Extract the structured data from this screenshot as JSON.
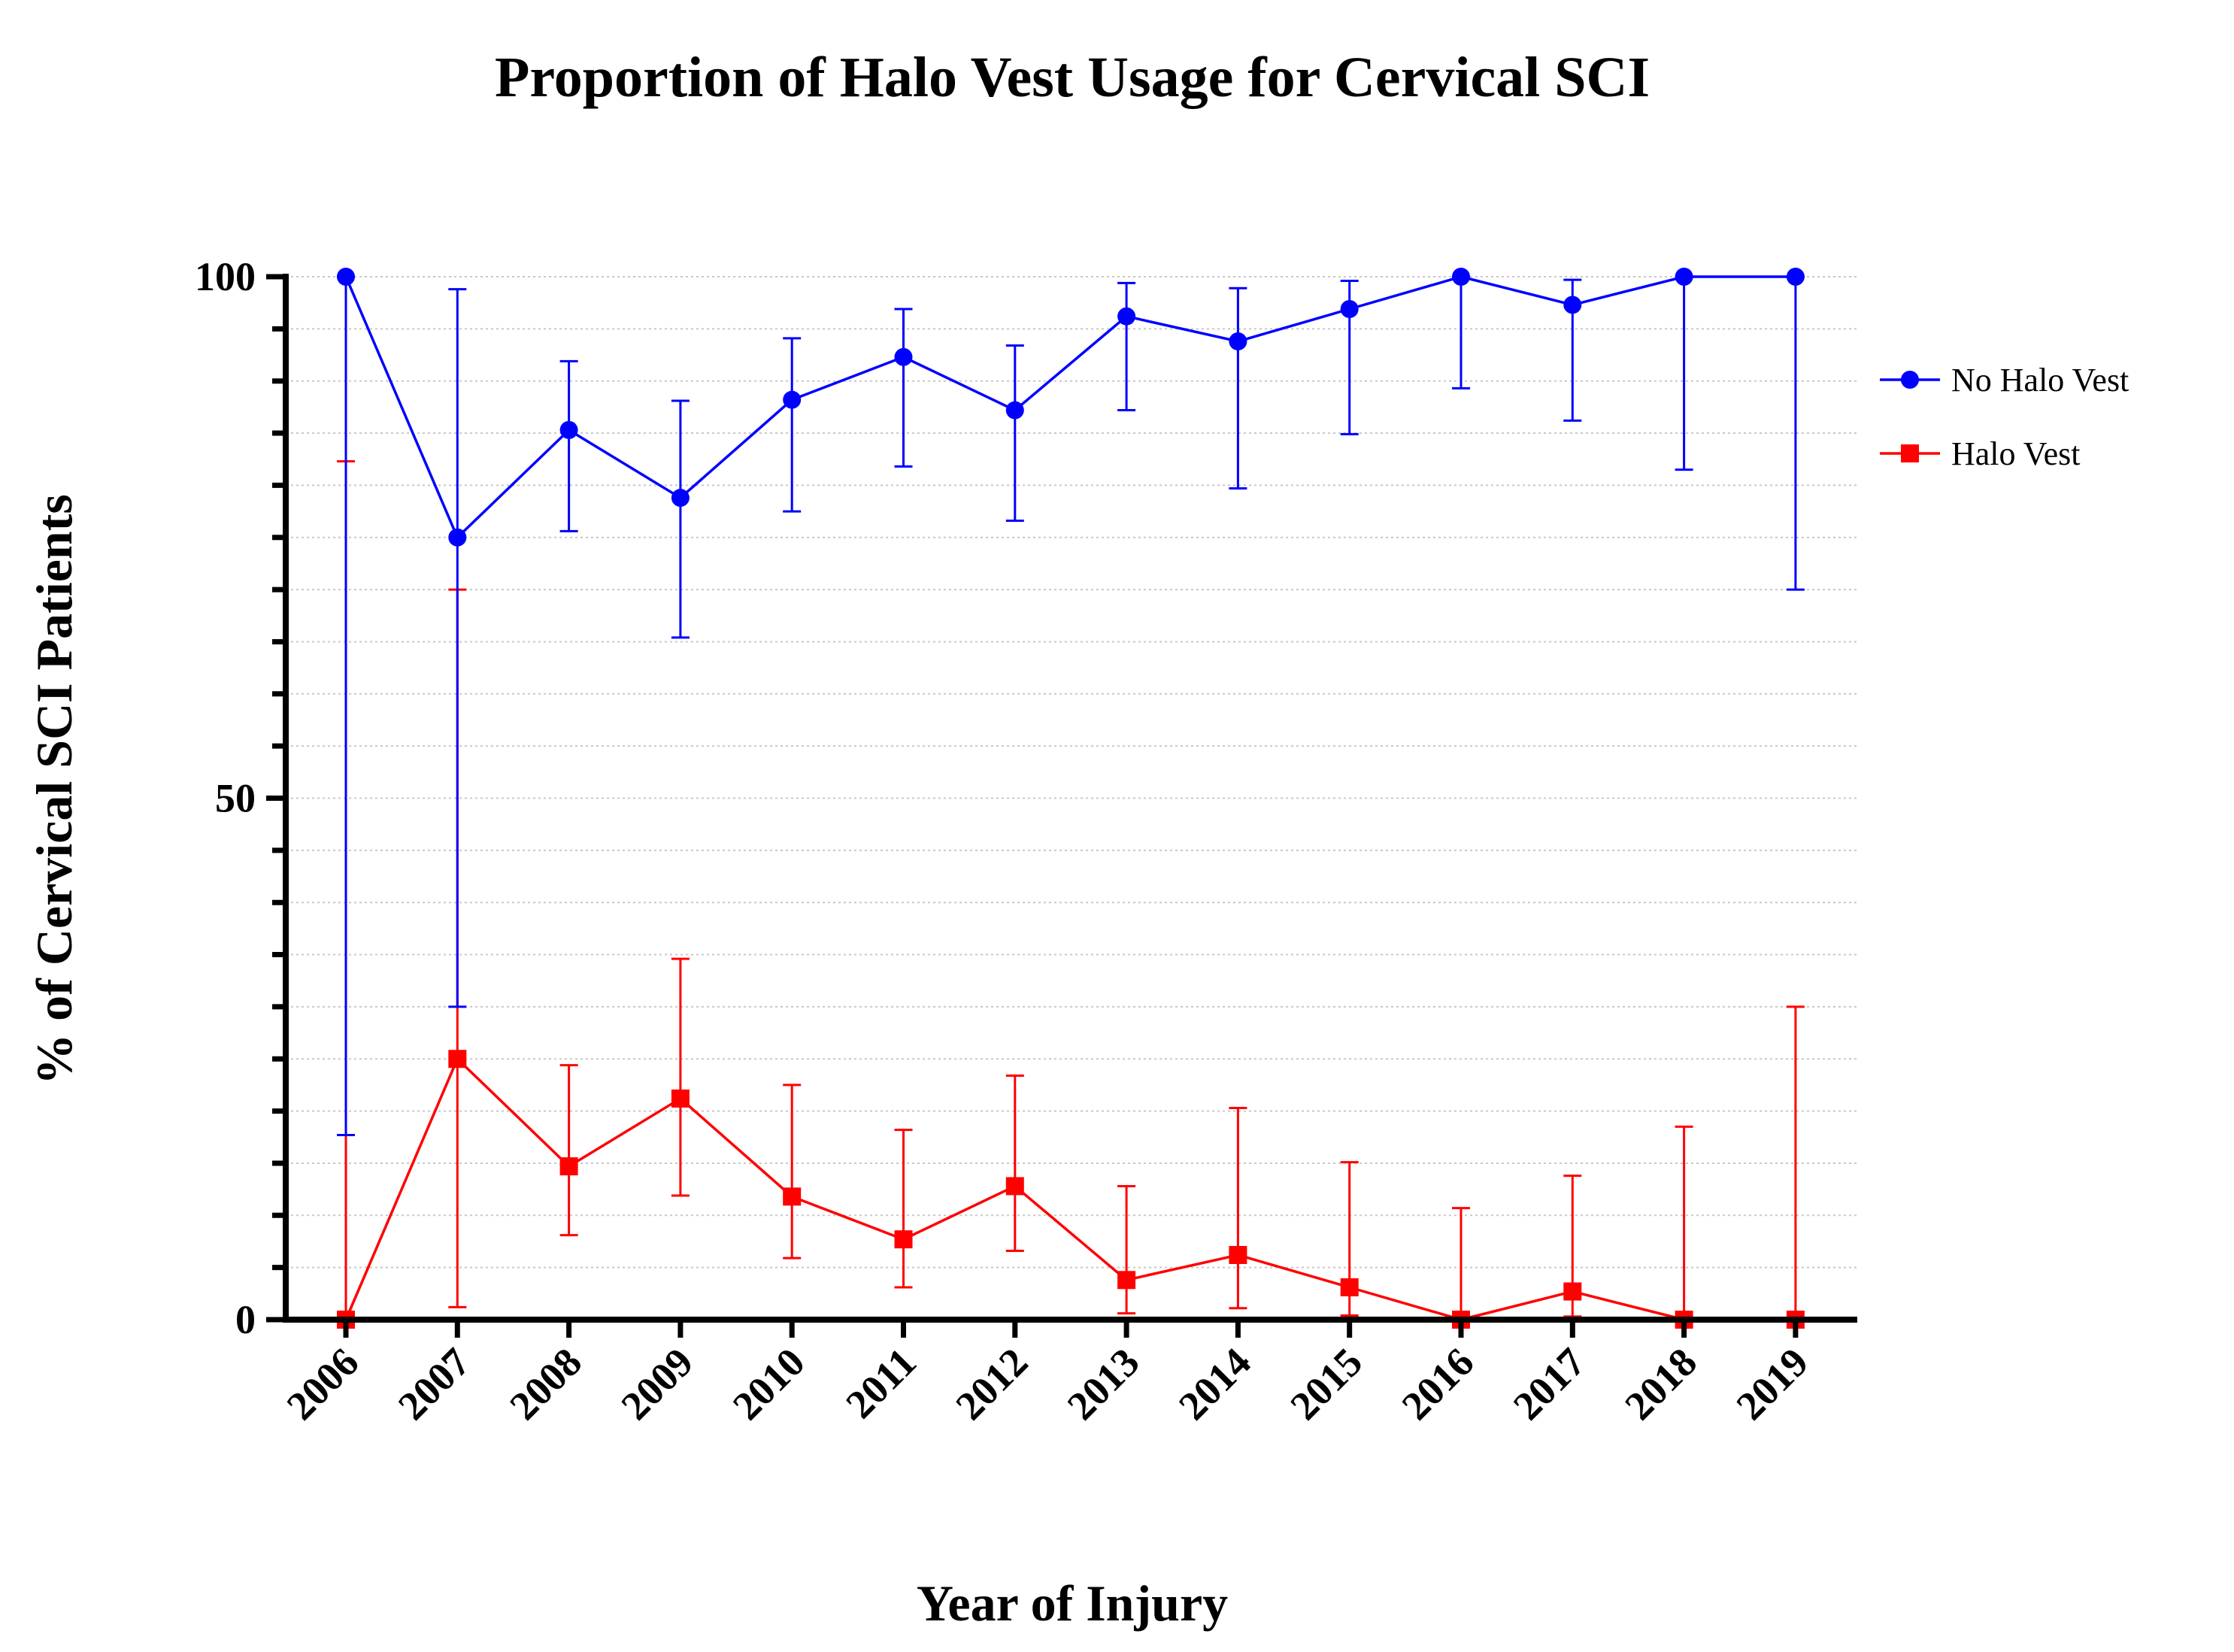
{
  "chart_data": {
    "type": "line",
    "title": "Proportion of Halo Vest Usage for Cervical SCI",
    "xlabel": "Year of Injury",
    "ylabel": "% of Cervical SCI Patients",
    "categories": [
      "2006",
      "2007",
      "2008",
      "2009",
      "2010",
      "2011",
      "2012",
      "2013",
      "2014",
      "2015",
      "2016",
      "2017",
      "2018",
      "2019"
    ],
    "ylim": [
      0,
      100
    ],
    "yticks": [
      0,
      50,
      100
    ],
    "grid": "horizontal dotted every 5",
    "legend_position": "right",
    "series": [
      {
        "name": "No Halo Vest",
        "color": "#0000ff",
        "marker": "circle",
        "values": [
          100,
          75,
          85.3,
          78.8,
          88.2,
          92.3,
          87.2,
          96.2,
          93.8,
          96.9,
          100,
          97.3,
          100,
          100
        ],
        "error_lower": [
          17.7,
          30,
          75.6,
          65.4,
          77.5,
          81.8,
          76.6,
          87.2,
          79.7,
          84.9,
          89.3,
          86.2,
          81.5,
          70
        ],
        "error_upper": [
          100,
          98.8,
          91.9,
          88.1,
          94.1,
          96.9,
          93.4,
          99.4,
          98.9,
          99.6,
          100,
          99.7,
          100,
          100
        ]
      },
      {
        "name": "Halo Vest",
        "color": "#ff0000",
        "marker": "square",
        "values": [
          0,
          25,
          14.7,
          21.2,
          11.8,
          7.7,
          12.8,
          3.8,
          6.2,
          3.1,
          0,
          2.7,
          0,
          0
        ],
        "error_lower": [
          0,
          1.2,
          8.1,
          11.9,
          5.9,
          3.1,
          6.6,
          0.6,
          1.1,
          0.4,
          0,
          0.3,
          0,
          0
        ],
        "error_upper": [
          82.3,
          70,
          24.4,
          34.6,
          22.5,
          18.2,
          23.4,
          12.8,
          20.3,
          15.1,
          10.7,
          13.8,
          18.5,
          30
        ]
      }
    ]
  }
}
